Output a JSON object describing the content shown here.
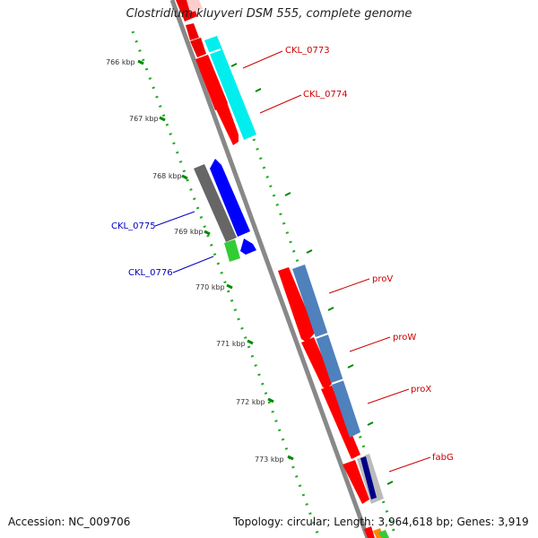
{
  "map": {
    "title": "Clostridium kluyveri DSM 555, complete genome",
    "accession": "Accession: NC_009706",
    "summary": "Topology: circular; Length: 3,964,618 bp; Genes: 3,919",
    "ticks": [
      "766 kbp",
      "767 kbp",
      "768 kbp",
      "769 kbp",
      "770 kbp",
      "771 kbp",
      "772 kbp",
      "773 kbp"
    ],
    "genes": [
      {
        "label": "CKL_0773",
        "color": "#cc0000"
      },
      {
        "label": "CKL_0774",
        "color": "#cc0000"
      },
      {
        "label": "CKL_0775",
        "color": "#0000bb"
      },
      {
        "label": "CKL_0776",
        "color": "#0000bb"
      },
      {
        "label": "proV",
        "color": "#cc0000"
      },
      {
        "label": "proW",
        "color": "#cc0000"
      },
      {
        "label": "proX",
        "color": "#cc0000"
      },
      {
        "label": "fabG",
        "color": "#cc0000"
      }
    ],
    "colors": {
      "backbone": "#888888",
      "forward_cds": "#ff0000",
      "reverse_cds": "#0000ff",
      "forward_track_a": "#00ffff",
      "forward_track_b": "#4f81bd",
      "reverse_track": "#666666",
      "green_feature": "#33cc33",
      "tick_mark": "#008800",
      "dot_trail": "#22aa22"
    }
  }
}
